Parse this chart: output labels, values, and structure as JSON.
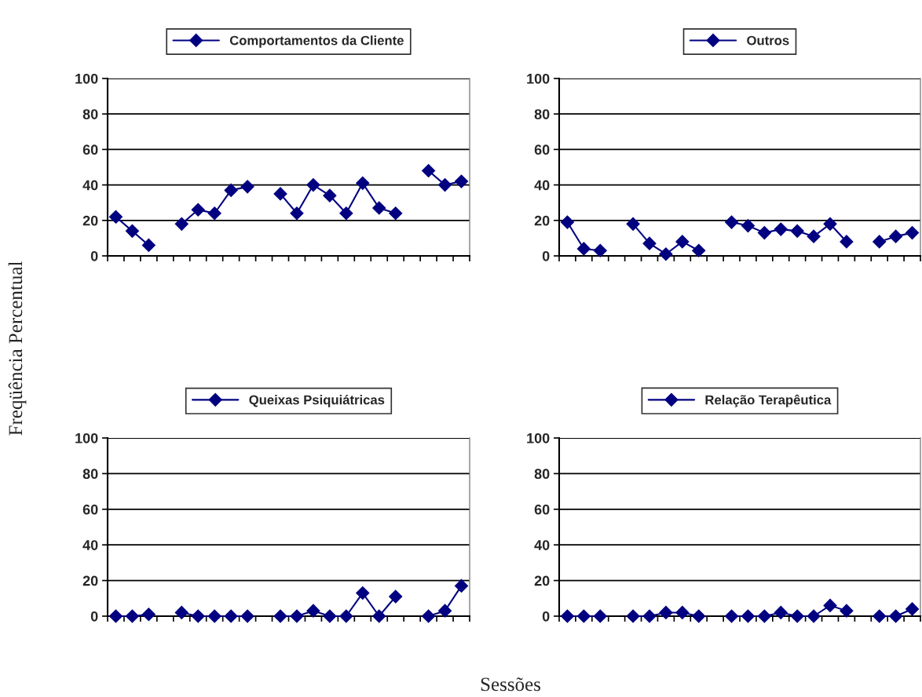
{
  "chart_data": [
    {
      "type": "line",
      "categories": [
        null,
        null,
        null,
        null,
        null,
        null,
        null,
        null,
        null,
        null,
        null,
        null,
        null,
        null,
        null,
        null,
        null,
        null,
        null,
        null,
        null,
        null
      ],
      "ylabel": "Freqüência Percentual",
      "xlabel": "Sessões",
      "ylim": [
        0,
        100
      ],
      "yticks": [
        0,
        20,
        40,
        60,
        80,
        100
      ],
      "grid": "y",
      "legend": "top",
      "marker": "diamond",
      "line_style": "solid",
      "series": [
        {
          "name": "Comportamentos da Cliente",
          "color": "#000080",
          "values": [
            22,
            14,
            6,
            null,
            18,
            26,
            24,
            37,
            39,
            null,
            35,
            24,
            40,
            34,
            24,
            41,
            27,
            24,
            null,
            48,
            40,
            42
          ]
        }
      ]
    },
    {
      "type": "line",
      "categories": [
        null,
        null,
        null,
        null,
        null,
        null,
        null,
        null,
        null,
        null,
        null,
        null,
        null,
        null,
        null,
        null,
        null,
        null,
        null,
        null,
        null,
        null
      ],
      "ylim": [
        0,
        100
      ],
      "yticks": [
        0,
        20,
        40,
        60,
        80,
        100
      ],
      "grid": "y",
      "legend": "top",
      "marker": "diamond",
      "line_style": "solid",
      "series": [
        {
          "name": "Outros",
          "color": "#000080",
          "values": [
            19,
            4,
            3,
            null,
            18,
            7,
            1,
            8,
            3,
            null,
            19,
            17,
            13,
            15,
            14,
            11,
            18,
            8,
            null,
            8,
            11,
            13
          ]
        }
      ]
    },
    {
      "type": "line",
      "categories": [
        null,
        null,
        null,
        null,
        null,
        null,
        null,
        null,
        null,
        null,
        null,
        null,
        null,
        null,
        null,
        null,
        null,
        null,
        null,
        null,
        null,
        null
      ],
      "ylim": [
        0,
        100
      ],
      "yticks": [
        0,
        20,
        40,
        60,
        80,
        100
      ],
      "grid": "y",
      "legend": "top",
      "marker": "diamond",
      "line_style": "solid",
      "series": [
        {
          "name": "Queixas Psiquiátricas",
          "color": "#000080",
          "values": [
            0,
            0,
            1,
            null,
            2,
            0,
            0,
            0,
            0,
            null,
            0,
            0,
            3,
            0,
            0,
            13,
            0,
            11,
            null,
            0,
            3,
            17
          ]
        }
      ]
    },
    {
      "type": "line",
      "categories": [
        null,
        null,
        null,
        null,
        null,
        null,
        null,
        null,
        null,
        null,
        null,
        null,
        null,
        null,
        null,
        null,
        null,
        null,
        null,
        null,
        null,
        null
      ],
      "ylim": [
        0,
        100
      ],
      "yticks": [
        0,
        20,
        40,
        60,
        80,
        100
      ],
      "grid": "y",
      "legend": "top",
      "marker": "diamond",
      "line_style": "solid",
      "series": [
        {
          "name": "Relação Terapêutica",
          "color": "#000080",
          "values": [
            0,
            0,
            0,
            null,
            0,
            0,
            2,
            2,
            0,
            null,
            0,
            0,
            0,
            2,
            0,
            0,
            6,
            3,
            null,
            0,
            0,
            4
          ]
        }
      ]
    }
  ]
}
